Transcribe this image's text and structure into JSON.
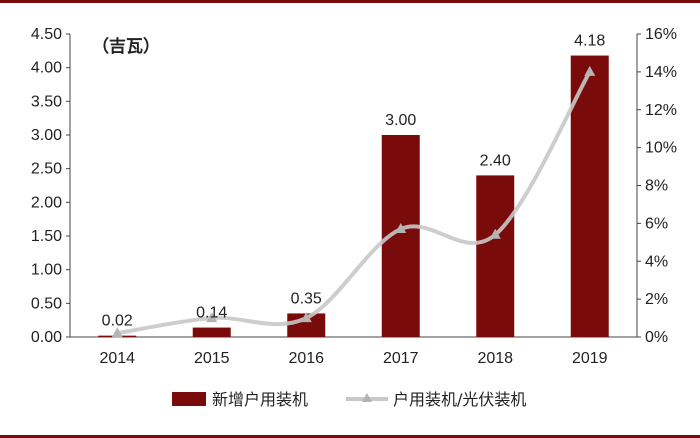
{
  "chart_data": {
    "type": "bar",
    "categories": [
      "2014",
      "2015",
      "2016",
      "2017",
      "2018",
      "2019"
    ],
    "series": [
      {
        "name": "新增户用装机",
        "type": "bar",
        "axis": "left",
        "values": [
          0.02,
          0.14,
          0.35,
          3.0,
          2.4,
          4.18
        ],
        "labels": [
          "0.02",
          "0.14",
          "0.35",
          "3.00",
          "2.40",
          "4.18"
        ],
        "color": "#7a0b0b"
      },
      {
        "name": "户用装机/光伏装机",
        "type": "line",
        "axis": "right",
        "values": [
          0.2,
          1.0,
          1.0,
          5.7,
          5.4,
          14.0
        ],
        "color": "#c8c8c8"
      }
    ],
    "unit_label": "（吉瓦）",
    "y_left": {
      "lim": [
        0,
        4.5
      ],
      "ticks": [
        "0.00",
        "0.50",
        "1.00",
        "1.50",
        "2.00",
        "2.50",
        "3.00",
        "3.50",
        "4.00",
        "4.50"
      ]
    },
    "y_right": {
      "lim": [
        0,
        16
      ],
      "ticks": [
        "0%",
        "2%",
        "4%",
        "6%",
        "8%",
        "10%",
        "12%",
        "14%",
        "16%"
      ]
    },
    "grid": false,
    "legend_position": "bottom"
  }
}
